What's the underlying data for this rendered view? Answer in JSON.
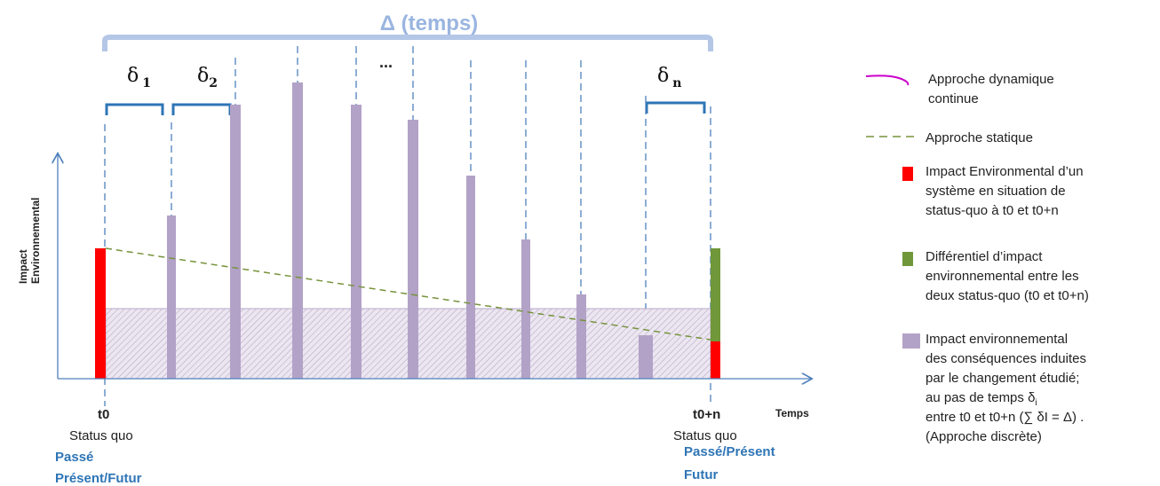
{
  "diagram": {
    "delta_total": "Δ (temps)",
    "steps": [
      {
        "symbol": "δ",
        "sub": "1"
      },
      {
        "symbol": "δ",
        "sub": "2"
      },
      {
        "ellipsis": "..."
      },
      {
        "symbol": "δ",
        "sub": "n"
      }
    ],
    "y_axis_label": [
      "Impact",
      "Environnemental"
    ],
    "x_axis_label": "Temps",
    "start": {
      "tick": "t0",
      "state": "Status quo",
      "time_lines": [
        "Passé",
        "Présent/Futur"
      ]
    },
    "end": {
      "tick": "t0+n",
      "state": "Status quo",
      "time_lines": [
        "Passé/Présent",
        "Futur"
      ]
    },
    "legend": [
      {
        "lines": [
          "Approche dynamique",
          "continue"
        ]
      },
      {
        "lines": [
          "Approche statique"
        ]
      },
      {
        "lines": [
          "Impact Environmental d’un",
          "système en situation de",
          "status-quo à t0 et t0+n"
        ]
      },
      {
        "lines": [
          "Différentiel d’impact",
          "environnemental entre les",
          "deux status-quo (t0 et t0+n)"
        ]
      },
      {
        "lines": [
          "Impact environnemental",
          "des conséquences induites",
          "par le changement étudié;",
          "au pas de temps δ",
          "entre t0 et t0+n (∑ δI = Δ) .",
          "(Approche discrète)"
        ],
        "sub": "i"
      }
    ]
  }
}
